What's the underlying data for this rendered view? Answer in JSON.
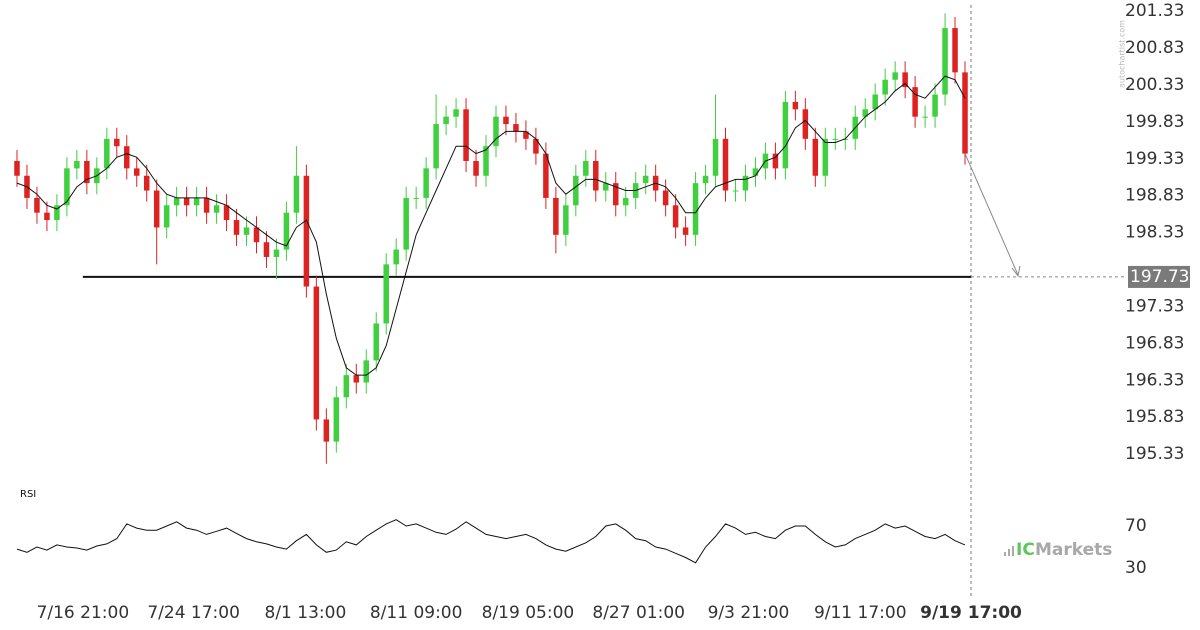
{
  "chart_data": {
    "type": "candlestick",
    "x": [
      0,
      1,
      2,
      3,
      4,
      5,
      6,
      7,
      8,
      9,
      10,
      11,
      12,
      13,
      14,
      15,
      16,
      17,
      18,
      19,
      20,
      21,
      22,
      23,
      24,
      25,
      26,
      27,
      28,
      29,
      30,
      31,
      32,
      33,
      34,
      35,
      36,
      37,
      38,
      39,
      40,
      41,
      42,
      43,
      44,
      45,
      46,
      47,
      48,
      49,
      50,
      51,
      52,
      53,
      54,
      55,
      56,
      57,
      58,
      59,
      60,
      61,
      62,
      63,
      64,
      65,
      66,
      67,
      68,
      69,
      70,
      71,
      72,
      73,
      74,
      75,
      76,
      77,
      78,
      79,
      80,
      81,
      82,
      83,
      84,
      85,
      86,
      87,
      88,
      89,
      90,
      91,
      92,
      93,
      94,
      95
    ],
    "open": [
      199.3,
      199.1,
      198.8,
      198.6,
      198.5,
      198.7,
      199.2,
      199.3,
      199.0,
      199.2,
      199.6,
      199.5,
      199.2,
      199.1,
      198.9,
      198.4,
      198.7,
      198.8,
      198.7,
      198.8,
      198.6,
      198.7,
      198.5,
      198.3,
      198.4,
      198.2,
      198.0,
      198.1,
      198.6,
      199.1,
      197.6,
      195.8,
      195.5,
      196.1,
      196.4,
      196.3,
      196.6,
      197.1,
      197.9,
      198.1,
      198.8,
      198.8,
      199.2,
      199.8,
      199.9,
      200.0,
      199.3,
      199.1,
      199.5,
      199.9,
      199.8,
      199.7,
      199.6,
      199.4,
      198.8,
      198.3,
      198.7,
      199.1,
      199.3,
      198.9,
      199.0,
      198.7,
      198.8,
      199.0,
      199.1,
      198.9,
      198.7,
      198.4,
      198.3,
      199.0,
      199.1,
      199.6,
      198.9,
      198.9,
      199.1,
      199.2,
      199.4,
      199.2,
      200.1,
      200.0,
      199.6,
      199.1,
      199.6,
      199.6,
      199.6,
      199.9,
      200.0,
      200.2,
      200.4,
      200.5,
      200.3,
      199.9,
      199.9,
      200.2,
      201.1,
      200.5
    ],
    "high": [
      199.45,
      199.25,
      198.95,
      198.75,
      198.85,
      199.35,
      199.45,
      199.45,
      199.35,
      199.75,
      199.75,
      199.65,
      199.35,
      199.25,
      199.05,
      198.85,
      198.95,
      198.95,
      198.95,
      198.95,
      198.85,
      198.85,
      198.65,
      198.55,
      198.55,
      198.35,
      198.25,
      198.75,
      199.5,
      199.25,
      197.75,
      195.95,
      196.25,
      196.55,
      196.55,
      196.75,
      197.25,
      198.05,
      198.25,
      198.95,
      198.95,
      199.35,
      200.2,
      200.05,
      200.15,
      200.15,
      199.45,
      199.65,
      200.05,
      200.05,
      199.95,
      199.85,
      199.75,
      199.55,
      198.95,
      198.85,
      199.25,
      199.45,
      199.45,
      199.15,
      199.15,
      198.95,
      199.15,
      199.25,
      199.25,
      199.05,
      198.85,
      198.55,
      199.15,
      199.25,
      200.2,
      199.75,
      199.05,
      199.25,
      199.35,
      199.55,
      199.55,
      200.25,
      200.25,
      200.15,
      199.75,
      199.75,
      199.75,
      199.75,
      200.05,
      200.15,
      200.35,
      200.55,
      200.65,
      200.65,
      200.45,
      200.05,
      200.35,
      201.3,
      201.25,
      200.65
    ],
    "low": [
      198.95,
      198.65,
      198.45,
      198.35,
      198.35,
      198.55,
      199.05,
      198.85,
      198.85,
      199.05,
      199.35,
      199.05,
      198.95,
      198.75,
      197.9,
      198.25,
      198.55,
      198.55,
      198.55,
      198.45,
      198.45,
      198.35,
      198.15,
      198.15,
      198.05,
      197.85,
      197.7,
      197.95,
      198.45,
      197.45,
      195.65,
      195.2,
      195.35,
      195.95,
      196.15,
      196.15,
      196.45,
      196.95,
      197.75,
      197.95,
      198.65,
      198.65,
      199.05,
      199.65,
      199.75,
      199.15,
      198.95,
      198.95,
      199.35,
      199.65,
      199.55,
      199.45,
      199.25,
      198.65,
      198.05,
      198.15,
      198.55,
      198.95,
      198.75,
      198.75,
      198.55,
      198.55,
      198.65,
      198.85,
      198.75,
      198.55,
      198.25,
      198.15,
      198.15,
      198.85,
      198.95,
      198.75,
      198.75,
      198.75,
      198.95,
      199.05,
      199.05,
      199.05,
      199.85,
      199.45,
      198.95,
      198.95,
      199.45,
      199.45,
      199.45,
      199.75,
      199.85,
      200.05,
      200.25,
      200.15,
      199.75,
      199.75,
      199.75,
      200.05,
      200.35,
      199.25
    ],
    "close": [
      199.1,
      198.8,
      198.6,
      198.5,
      198.7,
      199.2,
      199.3,
      199.0,
      199.2,
      199.6,
      199.5,
      199.2,
      199.1,
      198.9,
      198.4,
      198.7,
      198.8,
      198.7,
      198.8,
      198.6,
      198.7,
      198.5,
      198.3,
      198.4,
      198.2,
      198.0,
      198.1,
      198.6,
      199.1,
      197.6,
      195.8,
      195.5,
      196.1,
      196.4,
      196.3,
      196.6,
      197.1,
      197.9,
      198.1,
      198.8,
      198.8,
      199.2,
      199.8,
      199.9,
      200.0,
      199.3,
      199.1,
      199.5,
      199.9,
      199.8,
      199.7,
      199.6,
      199.4,
      198.8,
      198.3,
      198.7,
      199.1,
      199.3,
      198.9,
      199.0,
      198.7,
      198.8,
      199.0,
      199.1,
      198.9,
      198.7,
      198.4,
      198.3,
      199.0,
      199.1,
      199.6,
      198.9,
      198.9,
      199.1,
      199.2,
      199.4,
      199.2,
      200.1,
      200.0,
      199.6,
      199.1,
      199.6,
      199.6,
      199.6,
      199.9,
      200.0,
      200.2,
      200.4,
      200.5,
      200.3,
      199.9,
      199.9,
      200.2,
      201.1,
      200.5,
      199.4
    ],
    "moving_average": [
      199.0,
      198.95,
      198.85,
      198.7,
      198.65,
      198.75,
      198.95,
      199.05,
      199.1,
      199.2,
      199.35,
      199.4,
      199.35,
      199.2,
      199.0,
      198.85,
      198.8,
      198.8,
      198.8,
      198.8,
      198.75,
      198.7,
      198.6,
      198.5,
      198.4,
      198.3,
      198.2,
      198.15,
      198.4,
      198.5,
      198.2,
      197.5,
      196.9,
      196.5,
      196.4,
      196.4,
      196.5,
      196.8,
      197.3,
      197.8,
      198.3,
      198.6,
      198.9,
      199.2,
      199.5,
      199.5,
      199.4,
      199.45,
      199.6,
      199.7,
      199.7,
      199.7,
      199.6,
      199.4,
      199.0,
      198.85,
      198.95,
      199.05,
      199.05,
      199.0,
      198.95,
      198.9,
      198.9,
      198.95,
      199.0,
      198.95,
      198.8,
      198.6,
      198.6,
      198.8,
      198.95,
      199.0,
      199.05,
      199.05,
      199.1,
      199.3,
      199.35,
      199.5,
      199.75,
      199.85,
      199.7,
      199.55,
      199.55,
      199.6,
      199.75,
      199.9,
      200.0,
      200.1,
      200.25,
      200.35,
      200.2,
      200.15,
      200.3,
      200.45,
      200.4,
      200.15
    ],
    "up_color": "#3fcf3f",
    "down_color": "#dd2222",
    "ma_color": "#111111",
    "xlim": [
      -0.5,
      95.6
    ],
    "xticks": [
      {
        "value": 6.6,
        "label": "7/16 21:00"
      },
      {
        "value": 17.7,
        "label": "7/24 17:00"
      },
      {
        "value": 28.9,
        "label": "8/1 13:00"
      },
      {
        "value": 40.0,
        "label": "8/11 09:00"
      },
      {
        "value": 51.2,
        "label": "8/19 05:00"
      },
      {
        "value": 62.3,
        "label": "8/27 01:00"
      },
      {
        "value": 73.3,
        "label": "9/3 21:00"
      },
      {
        "value": 84.5,
        "label": "9/11 17:00"
      },
      {
        "value": 95.6,
        "label": "9/19 17:00"
      }
    ],
    "ylim": [
      194.98,
      201.48
    ],
    "yticks": [
      201.33,
      200.83,
      200.33,
      199.83,
      199.33,
      198.83,
      198.33,
      197.33,
      196.83,
      196.33,
      195.83,
      195.33
    ],
    "level": 197.73,
    "rsi": {
      "label": "RSI",
      "values": [
        48,
        45,
        50,
        47,
        52,
        50,
        49,
        47,
        51,
        53,
        58,
        72,
        68,
        66,
        66,
        70,
        74,
        68,
        66,
        62,
        65,
        68,
        63,
        58,
        55,
        53,
        50,
        48,
        56,
        62,
        52,
        45,
        47,
        55,
        52,
        60,
        66,
        72,
        76,
        70,
        72,
        68,
        64,
        62,
        67,
        74,
        68,
        62,
        60,
        58,
        60,
        62,
        58,
        52,
        48,
        46,
        50,
        54,
        60,
        70,
        72,
        66,
        58,
        56,
        50,
        48,
        44,
        40,
        35,
        50,
        60,
        72,
        68,
        62,
        64,
        60,
        58,
        66,
        70,
        70,
        62,
        55,
        50,
        52,
        58,
        62,
        66,
        72,
        68,
        70,
        65,
        60,
        58,
        62,
        56,
        52
      ],
      "ylim": [
        25,
        80
      ],
      "yticks": [
        70,
        30
      ]
    },
    "watermark": "autochartist.com",
    "logo_prefix": "IC",
    "logo_name": "Markets"
  }
}
